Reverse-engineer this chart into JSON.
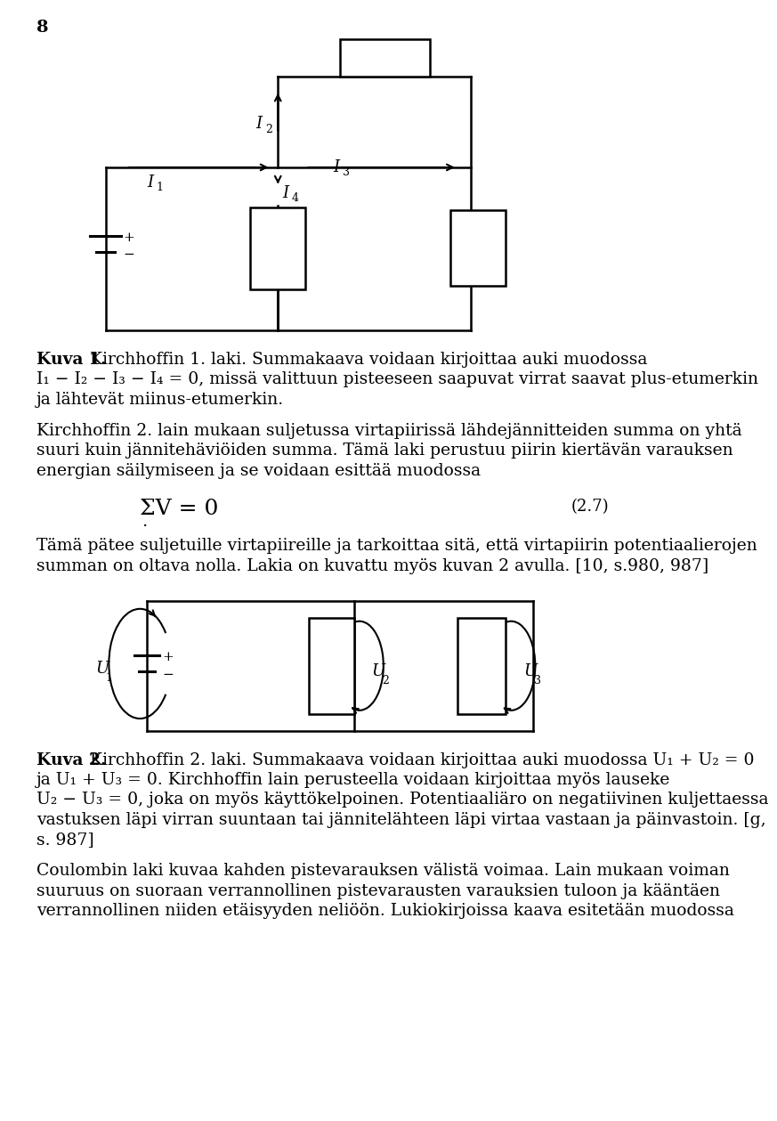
{
  "page_number": "8",
  "bg": "#ffffff",
  "fg": "#000000",
  "lm": 40,
  "rm": 920,
  "fs": 13.5,
  "lh": 29,
  "kuva1_line1_bold": "Kuva 1.",
  "kuva1_line1_rest": " Kirchhoffin 1. laki. Summakaava voidaan kirjoittaa auki muodossa",
  "kuva1_line2": "I₁ − I₂ − I₃ − I₄ = 0, missä valittuun pisteeseen saapuvat virrat saavat plus-etumerkin",
  "kuva1_line3": "ja lähtevät miinus-etumerkin.",
  "k2_line1": "Kirchhoffin 2. lain mukaan suljetussa virtapiirissä lähdejännitteiden summa on yhtä",
  "k2_line2": "suuri kuin jännitehäviöiden summa. Tämä laki perustuu piirin kiertävän varauksen",
  "k2_line3": "energian säilymiseen ja se voidaan esittää muodossa",
  "eq_text": "ΣV = 0",
  "eq_dot": ".",
  "eq_num": "(2.7)",
  "p2_line1": "Tämä pätee suljetuille virtapiireille ja tarkoittaa sitä, että virtapiirin potentiaalierojen",
  "p2_line2": "summan on oltava nolla. Lakia on kuvattu myös kuvan 2 avulla. [10, s.980, 987]",
  "kuva2_line1_bold": "Kuva 2.",
  "kuva2_line1_rest": " Kirchhoffin 2. laki. Summakaava voidaan kirjoittaa auki muodossa U₁ + U₂ = 0",
  "kuva2_line2": "ja U₁ + U₃ = 0. Kirchhoffin lain perusteella voidaan kirjoittaa myös lauseke",
  "kuva2_line3": "U₂ − U₃ = 0, joka on myös käyttökelpoinen. Potentiaaliäro on negatiivinen kuljettaessa",
  "kuva2_line4": "vastuksen läpi virran suuntaan tai jännitelähteen läpi virtaa vastaan ja päinvastoin. [g,",
  "kuva2_line5": "s. 987]",
  "fin_line1": "Coulombin laki kuvaa kahden pistevarauksen välistä voimaa. Lain mukaan voiman",
  "fin_line2": "suuruus on suoraan verrannollinen pistevarausten varauksien tuloon ja kääntäen",
  "fin_line3": "verrannollinen niiden etäisyyden neliöön. Lukiokirjoissa kaava esitetään muodossa"
}
